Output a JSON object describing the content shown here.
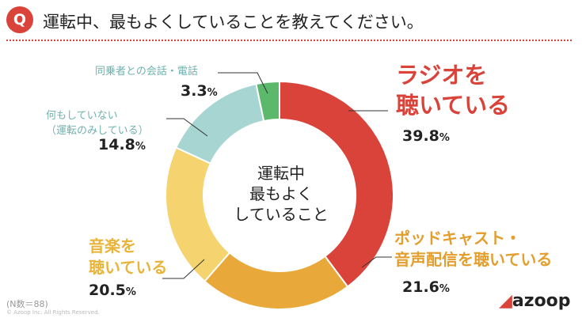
{
  "header": {
    "badge": "Q",
    "question": "運転中、最もよくしていることを教えてください。"
  },
  "center_label": [
    "運転中",
    "最もよく",
    "していること"
  ],
  "labels": {
    "radio_line1": "ラジオを",
    "radio_line2": "聴いている",
    "radio_pct": "39.8",
    "podcast_line1": "ポッドキャスト・",
    "podcast_line2": "音声配信を聴いている",
    "podcast_pct": "21.6",
    "music_line1": "音楽を",
    "music_line2": "聴いている",
    "music_pct": "20.5",
    "nothing_line1": "何もしていない",
    "nothing_line2": "（運転のみしている）",
    "nothing_pct": "14.8",
    "talk_line1": "同乗者との会話・電話",
    "talk_pct": "3.3",
    "unit": "%"
  },
  "footnote": "(N数＝88)",
  "copyright": "© Azoop Inc. All Rights Reserved.",
  "logo": {
    "mark": "◢",
    "text": "azoop"
  },
  "chart_data": {
    "type": "pie",
    "donut": true,
    "categories": [
      "ラジオを聴いている",
      "ポッドキャスト・音声配信を聴いている",
      "音楽を聴いている",
      "何もしていない（運転のみしている）",
      "同乗者との会話・電話"
    ],
    "values": [
      39.8,
      21.6,
      20.5,
      14.8,
      3.3
    ],
    "colors": [
      "#d9433a",
      "#e9a93a",
      "#f5d36e",
      "#a7d5d1",
      "#5cb86a"
    ],
    "n": 88
  }
}
